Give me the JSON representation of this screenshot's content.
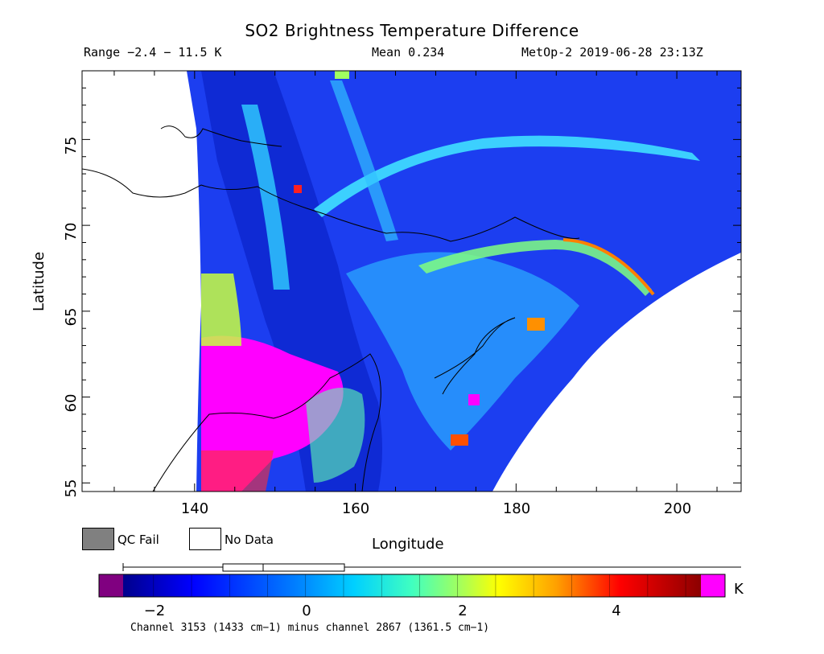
{
  "header": {
    "title": "SO2 Brightness Temperature Difference",
    "range_text": "Range −2.4 − 11.5 K",
    "mean_text": "Mean 0.234",
    "satellite_text": "MetOp-2 2019-06-28 23:13Z"
  },
  "axes": {
    "x_label": "Longitude",
    "y_label": "Latitude",
    "x_ticks": [
      "140",
      "160",
      "180",
      "200"
    ],
    "y_ticks": [
      "55",
      "60",
      "65",
      "70",
      "75"
    ],
    "x_range": [
      126,
      208
    ],
    "y_range": [
      54.5,
      79
    ]
  },
  "legend": {
    "qc_fail_label": "QC Fail",
    "no_data_label": "No Data",
    "qc_fail_color": "#808080",
    "no_data_color": "#ffffff"
  },
  "colorbar": {
    "unit": "K",
    "tick_labels": [
      "−2",
      "0",
      "2",
      "4"
    ],
    "tick_values": [
      -2,
      0,
      2,
      4
    ],
    "range": [
      -2.4,
      5.2
    ],
    "under_color": "#800080",
    "over_color": "#ff00ff",
    "caption": "Channel 3153 (1433 cm−1) minus channel 2867 (1361.5 cm−1)"
  }
}
